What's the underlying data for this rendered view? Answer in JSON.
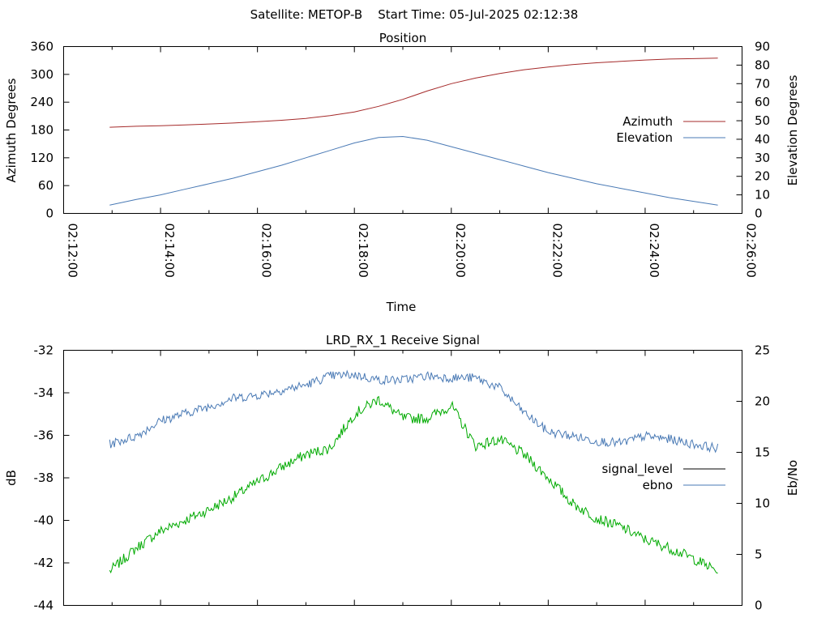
{
  "page_title": "Satellite: METOP-B    Start Time: 05-Jul-2025 02:12:38",
  "chart_data": [
    {
      "type": "line",
      "title": "Position",
      "xlabel": "Time",
      "ylabel": "Azimuth Degrees",
      "y2label": "Elevation Degrees",
      "x_ticks": [
        "02:12:00",
        "02:14:00",
        "02:16:00",
        "02:18:00",
        "02:20:00",
        "02:22:00",
        "02:24:00",
        "02:26:00"
      ],
      "x_range": [
        "02:12:00",
        "02:26:00"
      ],
      "x_minutes": [
        0,
        14
      ],
      "ylim": [
        0,
        360
      ],
      "y_ticks": [
        "0",
        "60",
        "120",
        "180",
        "240",
        "300",
        "360"
      ],
      "y2lim": [
        0,
        90
      ],
      "y2_ticks": [
        "0",
        "10",
        "20",
        "30",
        "40",
        "50",
        "60",
        "70",
        "80",
        "90"
      ],
      "grid": false,
      "legend_position": "right",
      "series": [
        {
          "name": "Azimuth",
          "axis": "left",
          "color": "#a52a2a",
          "x": [
            "02:12:57",
            "02:13:30",
            "02:14:00",
            "02:14:30",
            "02:15:00",
            "02:15:30",
            "02:16:00",
            "02:16:30",
            "02:17:00",
            "02:17:30",
            "02:18:00",
            "02:18:30",
            "02:19:00",
            "02:19:30",
            "02:20:00",
            "02:20:30",
            "02:21:00",
            "02:21:30",
            "02:22:00",
            "02:22:30",
            "02:23:00",
            "02:23:30",
            "02:24:00",
            "02:24:30",
            "02:25:00",
            "02:25:30"
          ],
          "values": [
            186,
            188,
            189,
            191,
            193,
            195,
            198,
            201,
            205,
            211,
            219,
            231,
            246,
            264,
            280,
            292,
            302,
            310,
            316,
            321,
            325,
            328,
            331,
            333,
            334,
            335
          ]
        },
        {
          "name": "Elevation",
          "axis": "right",
          "color": "#4a7ab5",
          "x": [
            "02:12:57",
            "02:13:30",
            "02:14:00",
            "02:14:30",
            "02:15:00",
            "02:15:30",
            "02:16:00",
            "02:16:30",
            "02:17:00",
            "02:17:30",
            "02:18:00",
            "02:18:30",
            "02:19:00",
            "02:19:30",
            "02:20:00",
            "02:20:30",
            "02:21:00",
            "02:21:30",
            "02:22:00",
            "02:22:30",
            "02:23:00",
            "02:23:30",
            "02:24:00",
            "02:24:30",
            "02:25:00",
            "02:25:30"
          ],
          "values": [
            4.5,
            7.5,
            10,
            13,
            16,
            19,
            22.5,
            26,
            30,
            34,
            38,
            41,
            41.5,
            39.5,
            36,
            32.5,
            29,
            25.5,
            22,
            19,
            16,
            13.5,
            11,
            8.5,
            6.5,
            4.5
          ]
        }
      ]
    },
    {
      "type": "line",
      "title": "LRD_RX_1 Receive Signal",
      "xlabel": "",
      "ylabel": "dB",
      "y2label": "Eb/No",
      "ylim": [
        -44,
        -32
      ],
      "y_ticks": [
        "-44",
        "-42",
        "-40",
        "-38",
        "-36",
        "-34",
        "-32"
      ],
      "y2lim": [
        0,
        25
      ],
      "y2_ticks": [
        "0",
        "5",
        "10",
        "15",
        "20",
        "25"
      ],
      "grid": false,
      "legend_position": "right",
      "series": [
        {
          "name": "signal_level",
          "axis": "left",
          "color": "#00aa00",
          "legend_color": "#000000",
          "x": [
            "02:12:57",
            "02:13:30",
            "02:14:00",
            "02:14:30",
            "02:15:00",
            "02:15:30",
            "02:16:00",
            "02:16:30",
            "02:17:00",
            "02:17:30",
            "02:18:00",
            "02:18:30",
            "02:19:00",
            "02:19:30",
            "02:20:00",
            "02:20:30",
            "02:21:00",
            "02:21:30",
            "02:22:00",
            "02:22:30",
            "02:23:00",
            "02:23:30",
            "02:24:00",
            "02:24:30",
            "02:25:00",
            "02:25:30"
          ],
          "values": [
            -42.4,
            -41.3,
            -40.5,
            -40.0,
            -39.5,
            -38.9,
            -38.2,
            -37.5,
            -36.9,
            -36.6,
            -35.0,
            -34.3,
            -35.2,
            -35.2,
            -34.6,
            -36.5,
            -36.2,
            -36.9,
            -38.0,
            -39.2,
            -39.9,
            -40.3,
            -40.9,
            -41.3,
            -41.8,
            -42.4
          ]
        },
        {
          "name": "ebno",
          "axis": "right",
          "color": "#4a7ab5",
          "x": [
            "02:12:57",
            "02:13:30",
            "02:14:00",
            "02:14:30",
            "02:15:00",
            "02:15:30",
            "02:16:00",
            "02:16:30",
            "02:17:00",
            "02:17:30",
            "02:18:00",
            "02:18:30",
            "02:19:00",
            "02:19:30",
            "02:20:00",
            "02:20:30",
            "02:21:00",
            "02:21:30",
            "02:22:00",
            "02:22:30",
            "02:23:00",
            "02:23:30",
            "02:24:00",
            "02:24:30",
            "02:25:00",
            "02:25:30"
          ],
          "values": [
            15.8,
            16.6,
            18.1,
            18.8,
            19.5,
            20.3,
            20.6,
            21.1,
            21.6,
            22.5,
            22.6,
            22.1,
            22.1,
            22.5,
            22.3,
            22.3,
            21.3,
            18.9,
            17.0,
            16.6,
            16.1,
            15.9,
            16.6,
            16.3,
            15.8,
            15.4
          ]
        }
      ]
    }
  ]
}
